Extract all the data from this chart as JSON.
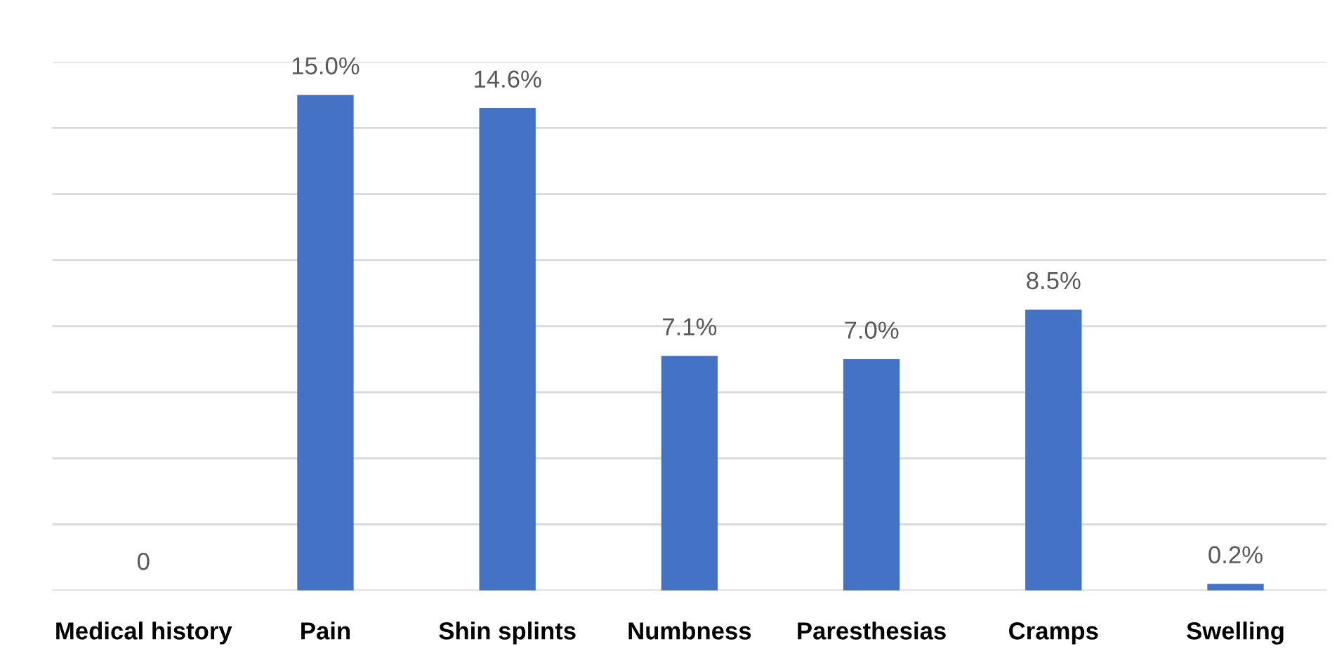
{
  "chart_data": {
    "type": "bar",
    "categories": [
      "Medical history",
      "Pain",
      "Shin splints",
      "Numbness",
      "Paresthesias",
      "Cramps",
      "Swelling"
    ],
    "values": [
      0,
      15.0,
      14.6,
      7.1,
      7.0,
      8.5,
      0.2
    ],
    "value_labels": [
      "0",
      "15.0%",
      "14.6%",
      "7.1%",
      "7.0%",
      "8.5%",
      "0.2%"
    ],
    "color": "#4472c4",
    "ylim": [
      0,
      16
    ],
    "yticks": [
      {
        "value": 0,
        "label": null
      },
      {
        "value": 2,
        "label": null
      },
      {
        "value": 4,
        "label": null
      },
      {
        "value": 6,
        "label": null
      },
      {
        "value": 8,
        "label": null
      },
      {
        "value": 10,
        "label": null
      },
      {
        "value": 12,
        "label": null
      },
      {
        "value": 14,
        "label": null
      },
      {
        "value": 16,
        "label": null
      }
    ],
    "tick_labels": "x",
    "grid": "y",
    "legend": false
  }
}
